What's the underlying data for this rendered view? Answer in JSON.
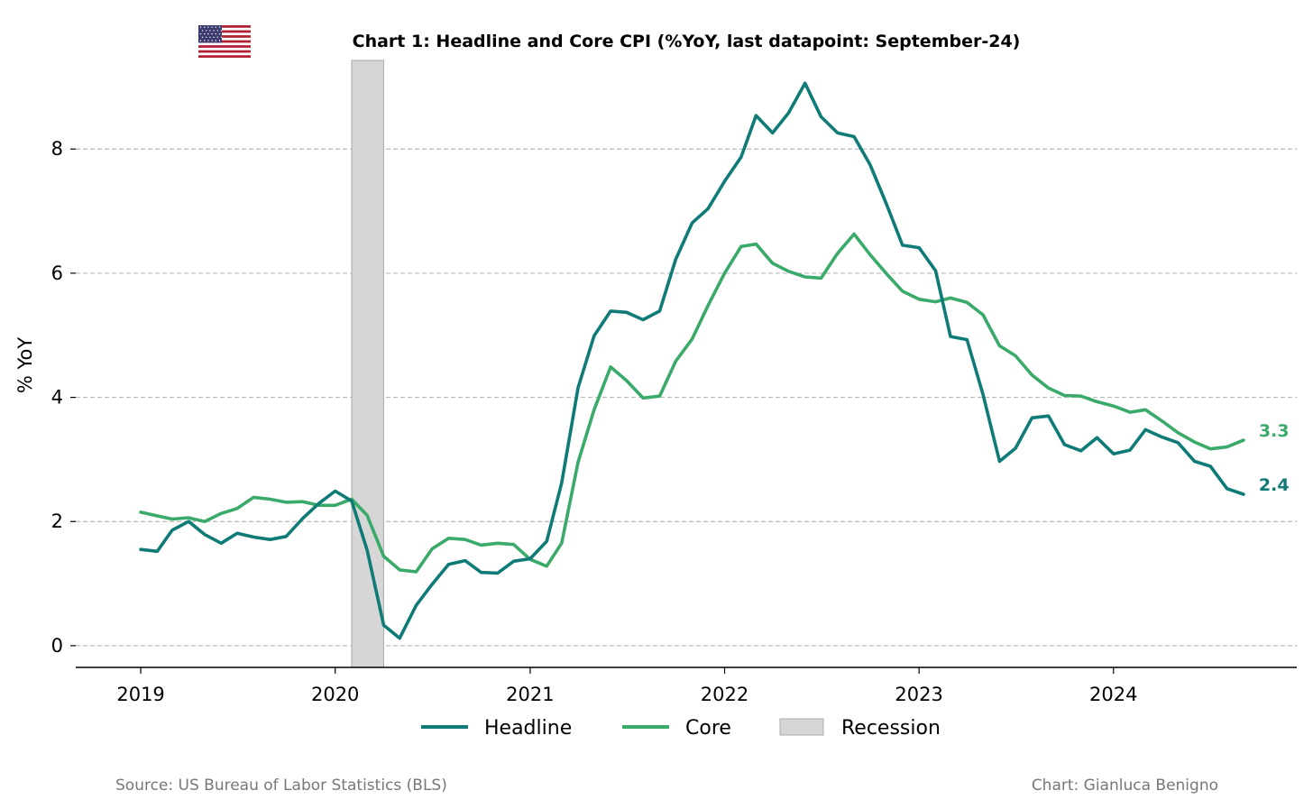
{
  "chart_data": {
    "type": "line",
    "title": "Chart 1: Headline and Core CPI (%YoY, last datapoint: September-24)",
    "ylabel": "% YoY",
    "xlabel": "",
    "ylim": [
      -0.35,
      9.5
    ],
    "xlim": [
      "2018-09-01",
      "2024-12-10"
    ],
    "yticks": [
      0,
      2,
      4,
      6,
      8
    ],
    "xticks": [
      "2019-01-01",
      "2020-01-01",
      "2021-01-01",
      "2022-01-01",
      "2023-01-01",
      "2024-01-01"
    ],
    "xtick_labels": [
      "2019",
      "2020",
      "2021",
      "2022",
      "2023",
      "2024"
    ],
    "ytick_labels": [
      "0",
      "2",
      "4",
      "6",
      "8"
    ],
    "grid": "horizontal dashed",
    "legend_position": "bottom-center",
    "x_start": "2019-01",
    "x_end": "2024-09",
    "frequency": "monthly",
    "series": [
      {
        "name": "Headline",
        "color": "#0f7b77",
        "end_label": "2.4",
        "values": [
          1.55,
          1.52,
          1.86,
          2.0,
          1.79,
          1.65,
          1.81,
          1.75,
          1.71,
          1.76,
          2.05,
          2.29,
          2.49,
          2.33,
          1.54,
          0.33,
          0.12,
          0.65,
          0.99,
          1.31,
          1.37,
          1.18,
          1.17,
          1.36,
          1.4,
          1.68,
          2.62,
          4.16,
          4.99,
          5.39,
          5.37,
          5.25,
          5.39,
          6.22,
          6.81,
          7.04,
          7.48,
          7.87,
          8.54,
          8.26,
          8.58,
          9.06,
          8.52,
          8.26,
          8.2,
          7.75,
          7.11,
          6.45,
          6.41,
          6.04,
          4.98,
          4.93,
          4.05,
          2.97,
          3.18,
          3.67,
          3.7,
          3.24,
          3.14,
          3.35,
          3.09,
          3.15,
          3.48,
          3.36,
          3.27,
          2.97,
          2.89,
          2.53,
          2.44
        ]
      },
      {
        "name": "Core",
        "color": "#3aaa6a",
        "end_label": "3.3",
        "values": [
          2.15,
          2.09,
          2.04,
          2.06,
          2.0,
          2.13,
          2.21,
          2.39,
          2.36,
          2.31,
          2.32,
          2.26,
          2.26,
          2.36,
          2.1,
          1.44,
          1.22,
          1.19,
          1.56,
          1.73,
          1.71,
          1.62,
          1.65,
          1.63,
          1.39,
          1.28,
          1.65,
          2.96,
          3.8,
          4.49,
          4.27,
          3.99,
          4.02,
          4.58,
          4.94,
          5.48,
          6.0,
          6.43,
          6.47,
          6.16,
          6.03,
          5.94,
          5.92,
          6.32,
          6.63,
          6.3,
          5.99,
          5.71,
          5.58,
          5.54,
          5.6,
          5.53,
          5.33,
          4.83,
          4.67,
          4.36,
          4.15,
          4.03,
          4.02,
          3.93,
          3.86,
          3.76,
          3.8,
          3.62,
          3.43,
          3.28,
          3.17,
          3.2,
          3.31
        ]
      }
    ],
    "shaded_regions": [
      {
        "name": "Recession",
        "start": "2020-02-01",
        "end": "2020-04-01",
        "color": "#d6d6d6"
      }
    ]
  },
  "legend": {
    "items": [
      {
        "label": "Headline",
        "color": "#0f7b77"
      },
      {
        "label": "Core",
        "color": "#3aaa6a"
      },
      {
        "label": "Recession",
        "color": "#d6d6d6"
      }
    ]
  },
  "footer": {
    "source": "Source: US Bureau of Labor Statistics (BLS)",
    "credit": "Chart: Gianluca Benigno"
  },
  "flag_icon": "us-flag-icon"
}
